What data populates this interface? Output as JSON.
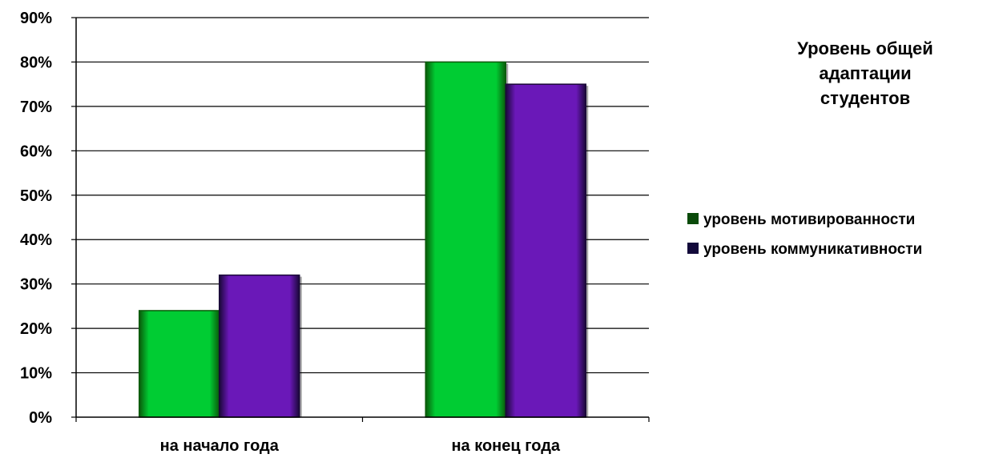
{
  "chart_data": {
    "type": "bar",
    "title": "Уровень общей адаптации студентов",
    "title_lines": [
      "Уровень общей",
      "адаптации",
      "студентов"
    ],
    "categories": [
      "на начало года",
      "на конец года"
    ],
    "series": [
      {
        "name": "уровень мотивированности",
        "values": [
          24,
          80
        ],
        "color": "#00cc33",
        "legend_color": "#0a4a0a"
      },
      {
        "name": "уровень коммуникативности",
        "values": [
          32,
          75
        ],
        "color": "#6a18b8",
        "legend_color": "#12093a"
      }
    ],
    "yticks": [
      "0%",
      "10%",
      "20%",
      "30%",
      "40%",
      "50%",
      "60%",
      "70%",
      "80%",
      "90%"
    ],
    "ylim": [
      0,
      90
    ],
    "grid": true,
    "legend_position": "right",
    "xlabel": "",
    "ylabel": ""
  }
}
